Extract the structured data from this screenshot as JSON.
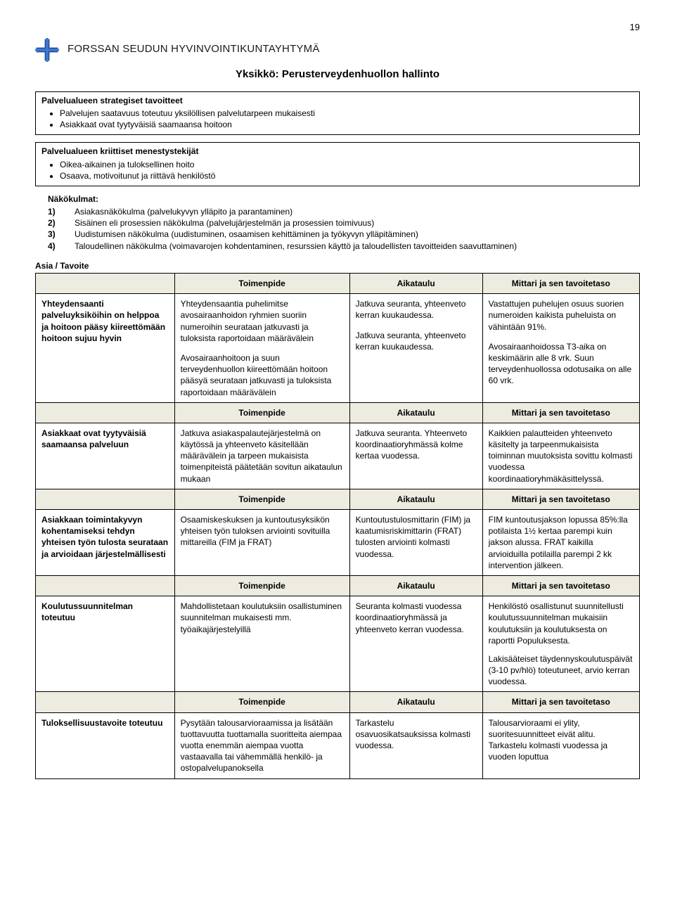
{
  "pageNumber": "19",
  "orgName": "FORSSAN SEUDUN HYVINVOINTIKUNTAYHTYMÄ",
  "unitTitle": "Yksikkö: Perusterveydenhuollon hallinto",
  "logo": {
    "colors": {
      "primary": "#2a4b9b",
      "accent": "#3b7bd1",
      "bg": "#ffffff"
    }
  },
  "box1": {
    "title": "Palvelualueen strategiset tavoitteet",
    "items": [
      "Palvelujen saatavuus toteutuu yksilöllisen palvelutarpeen mukaisesti",
      "Asiakkaat ovat tyytyväisiä saamaansa hoitoon"
    ]
  },
  "box2": {
    "title": "Palvelualueen kriittiset menestystekijät",
    "items": [
      "Oikea-aikainen ja tuloksellinen hoito",
      "Osaava, motivoitunut ja riittävä henkilöstö"
    ]
  },
  "nakokulmat": {
    "label": "Näkökulmat:",
    "items": [
      "Asiakasnäkökulma (palvelukyvyn ylläpito ja parantaminen)",
      "Sisäinen eli prosessien näkökulma (palvelujärjestelmän ja prosessien toimivuus)",
      "Uudistumisen näkökulma (uudistuminen, osaamisen kehittäminen ja työkyvyn ylläpitäminen)",
      "Taloudellinen näkökulma (voimavarojen kohdentaminen, resurssien käyttö ja taloudellisten tavoitteiden saavuttaminen)"
    ]
  },
  "asiaLabel": "Asia / Tavoite",
  "headers": {
    "toimenpide": "Toimenpide",
    "aikataulu": "Aikataulu",
    "mittari": "Mittari ja sen tavoitetaso"
  },
  "columnWidths": [
    "23%",
    "29%",
    "22%",
    "26%"
  ],
  "colors": {
    "headerBg": "#eeece1",
    "border": "#000000",
    "text": "#000000",
    "pageBg": "#ffffff"
  },
  "rows": [
    {
      "goal": "Yhteydensaanti palveluyksiköihin on helppoa ja hoitoon pääsy kiireettömään hoitoon sujuu hyvin",
      "blocks": [
        {
          "t": "Yhteydensaantia puhelimitse avosairaanhoidon ryhmien suoriin numeroihin seurataan jatkuvasti ja tuloksista raportoidaan määrävälein",
          "a": "Jatkuva seuranta, yhteenveto kerran kuukaudessa.",
          "m": "Vastattujen puhelujen osuus suorien numeroiden kaikista puheluista on vähintään 91%."
        },
        {
          "t": "Avosairaanhoitoon ja suun terveydenhuollon kiireettömään hoitoon pääsyä seurataan jatkuvasti ja tuloksista raportoidaan määrävälein",
          "a": "Jatkuva seuranta, yhteenveto kerran kuukaudessa.",
          "m": "Avosairaanhoidossa T3-aika on keskimäärin alle 8 vrk.\nSuun terveydenhuollossa odotusaika on alle 60 vrk."
        }
      ]
    },
    {
      "goal": "Asiakkaat ovat tyytyväisiä saamaansa palveluun",
      "blocks": [
        {
          "t": "Jatkuva asiakaspalautejärjestelmä on käytössä ja yhteenveto käsitellään määrävälein ja tarpeen mukaisista toimenpiteistä päätetään sovitun aikataulun mukaan",
          "a": "Jatkuva seuranta. Yhteenveto koordinaatioryhmässä kolme kertaa vuodessa.",
          "m": "Kaikkien palautteiden yhteenveto käsitelty ja tarpeenmukaisista toiminnan muutoksista sovittu kolmasti vuodessa koordinaatioryhmäkäsittelyssä."
        }
      ]
    },
    {
      "goal": "Asiakkaan toimintakyvyn kohentamiseksi tehdyn yhteisen työn tulosta seurataan ja arvioidaan järjestelmällisesti",
      "blocks": [
        {
          "t": "Osaamiskeskuksen ja kuntoutusyksikön yhteisen työn tuloksen arviointi sovituilla mittareilla (FIM ja FRAT)",
          "a": "Kuntoutustulosmittarin (FIM) ja kaatumisriskimittarin (FRAT) tulosten arviointi kolmasti vuodessa.",
          "m": "FIM kuntoutusjakson lopussa 85%:lla potilaista 1½ kertaa parempi kuin jakson alussa. FRAT kaikilla arvioiduilla potilailla parempi 2 kk intervention jälkeen."
        }
      ]
    },
    {
      "goal": "Koulutussuunnitelman toteutuu",
      "blocks": [
        {
          "t": "Mahdollistetaan koulutuksiin osallistuminen suunnitelman mukaisesti mm. työaikajärjestelyillä",
          "a": "Seuranta kolmasti vuodessa koordinaatioryhmässä ja yhteenveto kerran vuodessa.",
          "m": "Henkilöstö osallistunut suunnitellusti koulutussuunnitelman mukaisiin koulutuksiin ja koulutuksesta on raportti Populuksesta.\n\nLakisääteiset täydennyskoulutuspäivät (3-10 pv/hlö) toteutuneet, arvio kerran vuodessa."
        }
      ]
    },
    {
      "goal": "Tuloksellisuustavoite toteutuu",
      "blocks": [
        {
          "t": "Pysytään talousarvioraamissa ja lisätään tuottavuutta tuottamalla suoritteita aiempaa vuotta enemmän aiempaa vuotta vastaavalla tai vähemmällä henkilö- ja ostopalvelupanoksella",
          "a": "Tarkastelu osavuosikatsauksissa kolmasti vuodessa.",
          "m": "Talousarvioraami ei ylity, suoritesuunnitteet eivät alitu. Tarkastelu kolmasti vuodessa ja vuoden loputtua"
        }
      ]
    }
  ]
}
